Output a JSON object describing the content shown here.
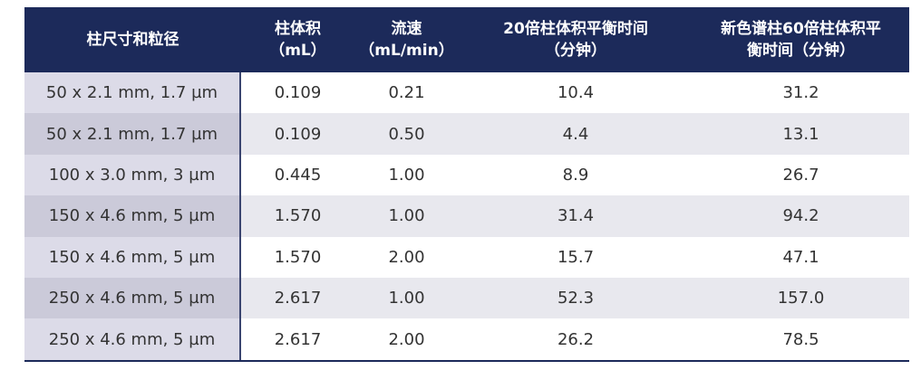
{
  "table": {
    "header": [
      [
        "柱尺寸和粒径"
      ],
      [
        "柱体积",
        "（mL）"
      ],
      [
        "流速",
        "（mL/min）"
      ],
      [
        "20倍柱体积平衡时间",
        "（分钟）"
      ],
      [
        "新色谱柱60倍柱体积平",
        "衡时间（分钟）"
      ]
    ],
    "rows": [
      [
        "50 x 2.1 mm, 1.7 µm",
        "0.109",
        "0.21",
        "10.4",
        "31.2"
      ],
      [
        "50 x 2.1 mm, 1.7 µm",
        "0.109",
        "0.50",
        "4.4",
        "13.1"
      ],
      [
        "100 x 3.0 mm, 3 µm",
        "0.445",
        "1.00",
        "8.9",
        "26.7"
      ],
      [
        "150 x 4.6 mm, 5 µm",
        "1.570",
        "1.00",
        "31.4",
        "94.2"
      ],
      [
        "150 x 4.6 mm, 5 µm",
        "1.570",
        "2.00",
        "15.7",
        "47.1"
      ],
      [
        "250 x 4.6 mm, 5 µm",
        "2.617",
        "1.00",
        "52.3",
        "157.0"
      ],
      [
        "250 x 4.6 mm, 5 µm",
        "2.617",
        "2.00",
        "26.2",
        "78.5"
      ]
    ]
  }
}
